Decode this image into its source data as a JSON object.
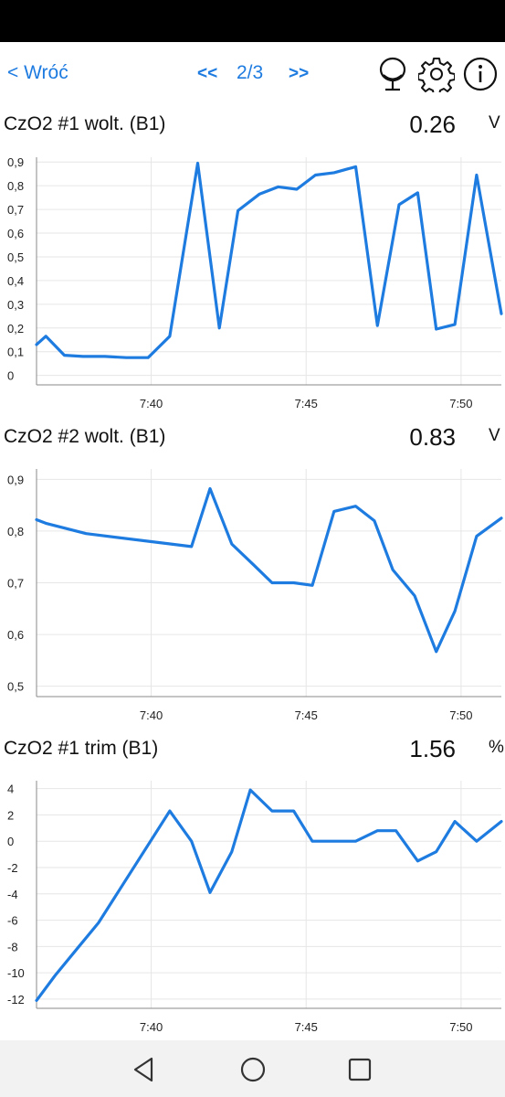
{
  "header": {
    "back_label": "< Wróć",
    "prev_label": "<<",
    "page_label": "2/3",
    "next_label": ">>",
    "icons": [
      "mirror-icon",
      "gear-icon",
      "info-icon"
    ],
    "accent_color": "#1e7be0"
  },
  "charts": [
    {
      "title": "CzO2 #1 wolt. (B1)",
      "value": "0.26",
      "unit": "V"
    },
    {
      "title": "CzO2 #2 wolt. (B1)",
      "value": "0.83",
      "unit": "V"
    },
    {
      "title": "CzO2 #1 trim (B1)",
      "value": "1.56",
      "unit": "%"
    }
  ],
  "chart_data": [
    {
      "type": "line",
      "title": "CzO2 #1 wolt. (B1)",
      "line_color": "#1e7be0",
      "grid": true,
      "x_ticks": [
        "7:40",
        "7:45",
        "7:50"
      ],
      "x_tick_values": [
        40,
        45,
        50
      ],
      "xlim": [
        36.3,
        51.3
      ],
      "y_ticks": [
        "0",
        "0,1",
        "0,2",
        "0,3",
        "0,4",
        "0,5",
        "0,6",
        "0,7",
        "0,8",
        "0,9"
      ],
      "y_tick_values": [
        0,
        0.1,
        0.2,
        0.3,
        0.4,
        0.5,
        0.6,
        0.7,
        0.8,
        0.9
      ],
      "ylim": [
        -0.04,
        0.92
      ],
      "x": [
        36.3,
        36.6,
        37.2,
        37.8,
        38.5,
        39.2,
        39.9,
        40.6,
        41.5,
        42.2,
        42.8,
        43.5,
        44.1,
        44.7,
        45.3,
        45.9,
        46.6,
        47.3,
        48.0,
        48.6,
        49.2,
        49.8,
        50.5,
        51.3
      ],
      "y": [
        0.13,
        0.165,
        0.085,
        0.08,
        0.08,
        0.075,
        0.075,
        0.165,
        0.895,
        0.2,
        0.695,
        0.765,
        0.795,
        0.785,
        0.845,
        0.855,
        0.88,
        0.21,
        0.72,
        0.77,
        0.195,
        0.215,
        0.845,
        0.26
      ]
    },
    {
      "type": "line",
      "title": "CzO2 #2 wolt. (B1)",
      "line_color": "#1e7be0",
      "grid": true,
      "x_ticks": [
        "7:40",
        "7:45",
        "7:50"
      ],
      "x_tick_values": [
        40,
        45,
        50
      ],
      "xlim": [
        36.3,
        51.3
      ],
      "y_ticks": [
        "0,5",
        "0,6",
        "0,7",
        "0,8",
        "0,9"
      ],
      "y_tick_values": [
        0.5,
        0.6,
        0.7,
        0.8,
        0.9
      ],
      "ylim": [
        0.48,
        0.92
      ],
      "x": [
        36.3,
        36.6,
        37.9,
        41.3,
        41.9,
        42.6,
        43.3,
        43.9,
        44.6,
        45.2,
        45.9,
        46.6,
        47.2,
        47.8,
        48.5,
        49.2,
        49.8,
        50.5,
        51.3
      ],
      "y": [
        0.822,
        0.815,
        0.795,
        0.77,
        0.882,
        0.775,
        0.735,
        0.7,
        0.7,
        0.695,
        0.838,
        0.848,
        0.82,
        0.725,
        0.675,
        0.567,
        0.645,
        0.79,
        0.825
      ]
    },
    {
      "type": "line",
      "title": "CzO2 #1 trim (B1)",
      "line_color": "#1e7be0",
      "grid": true,
      "x_ticks": [
        "7:40",
        "7:45",
        "7:50"
      ],
      "x_tick_values": [
        40,
        45,
        50
      ],
      "xlim": [
        36.3,
        51.3
      ],
      "y_ticks": [
        "-12",
        "-10",
        "-8",
        "-6",
        "-4",
        "-2",
        "0",
        "2",
        "4"
      ],
      "y_tick_values": [
        -12,
        -10,
        -8,
        -6,
        -4,
        -2,
        0,
        2,
        4
      ],
      "ylim": [
        -12.7,
        4.6
      ],
      "x": [
        36.3,
        36.9,
        37.6,
        38.3,
        40.6,
        41.3,
        41.9,
        42.6,
        43.2,
        43.9,
        44.6,
        45.2,
        45.9,
        46.6,
        47.3,
        47.9,
        48.6,
        49.2,
        49.8,
        50.5,
        51.3
      ],
      "y": [
        -12.1,
        -10.2,
        -8.2,
        -6.2,
        2.3,
        0.0,
        -3.9,
        -0.8,
        3.9,
        2.3,
        2.3,
        0.0,
        0.0,
        0.0,
        0.8,
        0.8,
        -1.5,
        -0.8,
        1.5,
        0.0,
        1.5
      ]
    }
  ],
  "android_nav": [
    "back-triangle-icon",
    "home-circle-icon",
    "recents-square-icon"
  ]
}
